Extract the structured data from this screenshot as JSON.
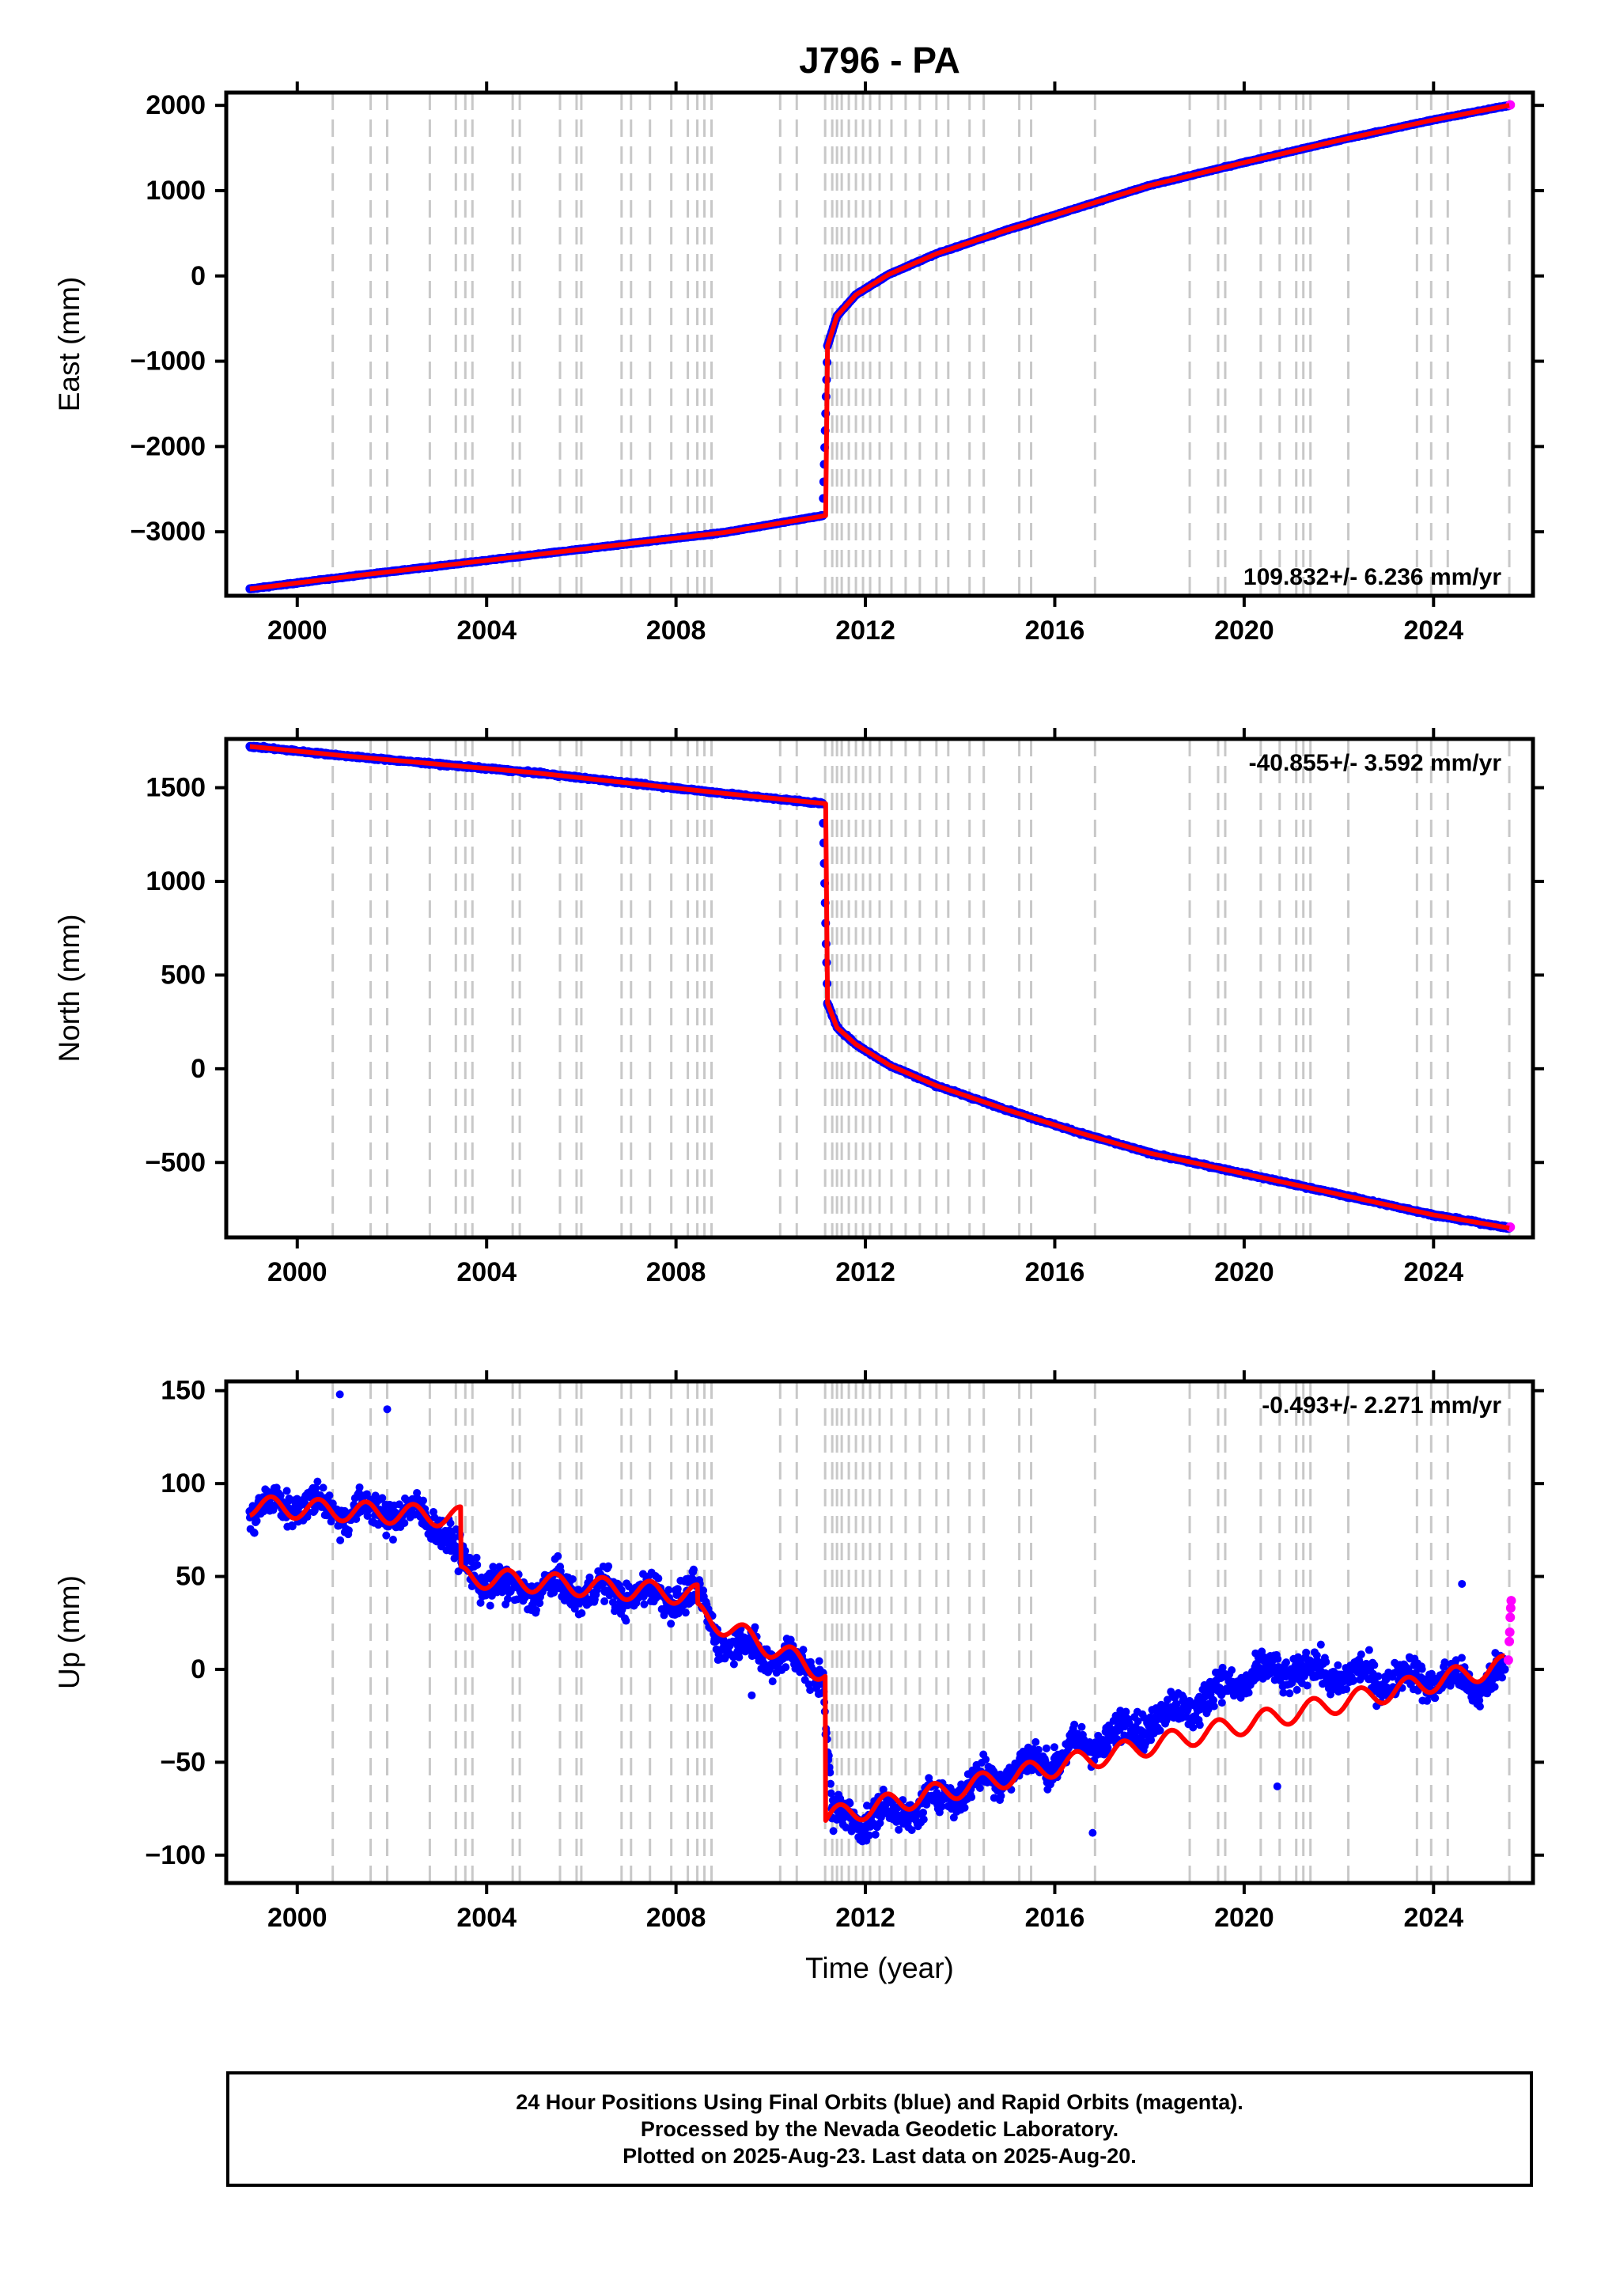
{
  "title": "J796 - PA",
  "xlabel": "Time (year)",
  "xticks": [
    "2000",
    "2004",
    "2008",
    "2012",
    "2016",
    "2020",
    "2024"
  ],
  "footer": {
    "line1": "24 Hour Positions Using Final Orbits (blue) and Rapid Orbits (magenta).",
    "line2": "Processed by the Nevada Geodetic Laboratory.",
    "line3": "Plotted on 2025-Aug-23. Last data on 2025-Aug-20."
  },
  "colors": {
    "final_orbits": "#0000ff",
    "rapid_orbits": "#ff00ff",
    "model": "#ff0000",
    "event_lines": "#c8c8c8"
  },
  "chart_data": [
    {
      "type": "scatter",
      "panel": "east",
      "ylabel": "East (mm)",
      "rate_label": "109.832+/- 6.236 mm/yr",
      "rate_position": "bottom-right",
      "xlim": [
        1998.5,
        2026.1
      ],
      "ylim": [
        -3750,
        2150
      ],
      "yticks": [
        "2000",
        "1000",
        "0",
        "−1000",
        "−2000",
        "−3000"
      ],
      "ytick_values": [
        2000,
        1000,
        0,
        -1000,
        -2000,
        -3000
      ],
      "series": [
        {
          "name": "Final Orbits",
          "color": "#0000ff",
          "x": [
            1999.0,
            2001.0,
            2003.0,
            2005.0,
            2007.0,
            2009.0,
            2011.1,
            2011.2,
            2011.4,
            2011.8,
            2012.5,
            2013.5,
            2015.0,
            2016.5,
            2018.0,
            2020.0,
            2022.0,
            2024.0,
            2025.6
          ],
          "y": [
            -3670,
            -3530,
            -3400,
            -3270,
            -3140,
            -3010,
            -2810,
            -820,
            -470,
            -220,
            20,
            260,
            540,
            800,
            1060,
            1330,
            1590,
            1830,
            2000
          ]
        },
        {
          "name": "Rapid Orbits",
          "color": "#ff00ff",
          "x": [
            2025.62
          ],
          "y": [
            2005
          ]
        }
      ],
      "model": {
        "x": [
          1999.0,
          2001.0,
          2003.0,
          2005.0,
          2007.0,
          2009.0,
          2011.15,
          2011.16,
          2011.2,
          2011.4,
          2011.8,
          2012.5,
          2013.5,
          2015.0,
          2016.5,
          2018.0,
          2020.0,
          2022.0,
          2024.0,
          2025.6
        ],
        "y": [
          -3670,
          -3530,
          -3400,
          -3270,
          -3140,
          -3010,
          -2810,
          -2810,
          -820,
          -470,
          -220,
          20,
          260,
          540,
          800,
          1060,
          1330,
          1590,
          1830,
          2000
        ]
      }
    },
    {
      "type": "scatter",
      "panel": "north",
      "ylabel": "North (mm)",
      "rate_label": "-40.855+/- 3.592 mm/yr",
      "rate_position": "top-right",
      "xlim": [
        1998.5,
        2026.1
      ],
      "ylim": [
        -900,
        1760
      ],
      "yticks": [
        "1500",
        "1000",
        "500",
        "0",
        "−500"
      ],
      "ytick_values": [
        1500,
        1000,
        500,
        0,
        -500
      ],
      "series": [
        {
          "name": "Final Orbits",
          "color": "#0000ff",
          "x": [
            1999.0,
            2001.0,
            2003.0,
            2005.0,
            2007.0,
            2009.0,
            2011.1,
            2011.2,
            2011.4,
            2011.8,
            2012.5,
            2013.5,
            2015.0,
            2016.5,
            2018.0,
            2020.0,
            2022.0,
            2024.0,
            2025.6
          ],
          "y": [
            1720,
            1670,
            1625,
            1580,
            1525,
            1470,
            1415,
            350,
            220,
            130,
            20,
            -90,
            -220,
            -340,
            -450,
            -560,
            -670,
            -780,
            -850
          ]
        },
        {
          "name": "Rapid Orbits",
          "color": "#ff00ff",
          "x": [
            2025.62
          ],
          "y": [
            -845
          ]
        }
      ],
      "model": {
        "x": [
          1999.0,
          2001.0,
          2003.0,
          2005.0,
          2007.0,
          2009.0,
          2011.15,
          2011.16,
          2011.2,
          2011.4,
          2011.8,
          2012.5,
          2013.5,
          2015.0,
          2016.5,
          2018.0,
          2020.0,
          2022.0,
          2024.0,
          2025.6
        ],
        "y": [
          1720,
          1670,
          1625,
          1580,
          1525,
          1470,
          1415,
          1415,
          350,
          220,
          130,
          20,
          -90,
          -220,
          -340,
          -450,
          -560,
          -670,
          -780,
          -850
        ]
      }
    },
    {
      "type": "scatter",
      "panel": "up",
      "ylabel": "Up (mm)",
      "rate_label": "-0.493+/- 2.271 mm/yr",
      "rate_position": "top-right",
      "xlim": [
        1998.5,
        2026.1
      ],
      "ylim": [
        -115,
        155
      ],
      "yticks": [
        "150",
        "100",
        "50",
        "0",
        "−50",
        "−100"
      ],
      "ytick_values": [
        150,
        100,
        50,
        0,
        -50,
        -100
      ],
      "series": [
        {
          "name": "Final Orbits",
          "color": "#0000ff",
          "x": [
            1999.0,
            2000.0,
            2001.0,
            2002.0,
            2003.0,
            2003.5,
            2004.5,
            2005.5,
            2006.5,
            2007.5,
            2008.4,
            2009.0,
            2010.0,
            2011.1,
            2011.3,
            2012.0,
            2013.0,
            2014.0,
            2015.0,
            2016.0,
            2017.0,
            2018.0,
            2019.0,
            2020.0,
            2021.0,
            2022.0,
            2023.0,
            2024.0,
            2025.0,
            2025.5
          ],
          "y": [
            85,
            90,
            85,
            85,
            80,
            55,
            42,
            44,
            42,
            40,
            40,
            15,
            8,
            -2,
            -80,
            -80,
            -75,
            -65,
            -55,
            -48,
            -38,
            -28,
            -18,
            -5,
            0,
            -3,
            -5,
            -5,
            -8,
            0
          ]
        },
        {
          "name": "Rapid Orbits",
          "color": "#ff00ff",
          "x": [
            2025.58,
            2025.6,
            2025.61,
            2025.62,
            2025.63,
            2025.64
          ],
          "y": [
            5,
            15,
            20,
            28,
            33,
            37
          ]
        }
      ],
      "model": {
        "x": [
          1999.0,
          2003.45,
          2003.46,
          2008.45,
          2008.46,
          2011.15,
          2011.16,
          2025.5
        ],
        "y": [
          88,
          82,
          50,
          40,
          30,
          -2,
          -80,
          2
        ]
      }
    }
  ]
}
